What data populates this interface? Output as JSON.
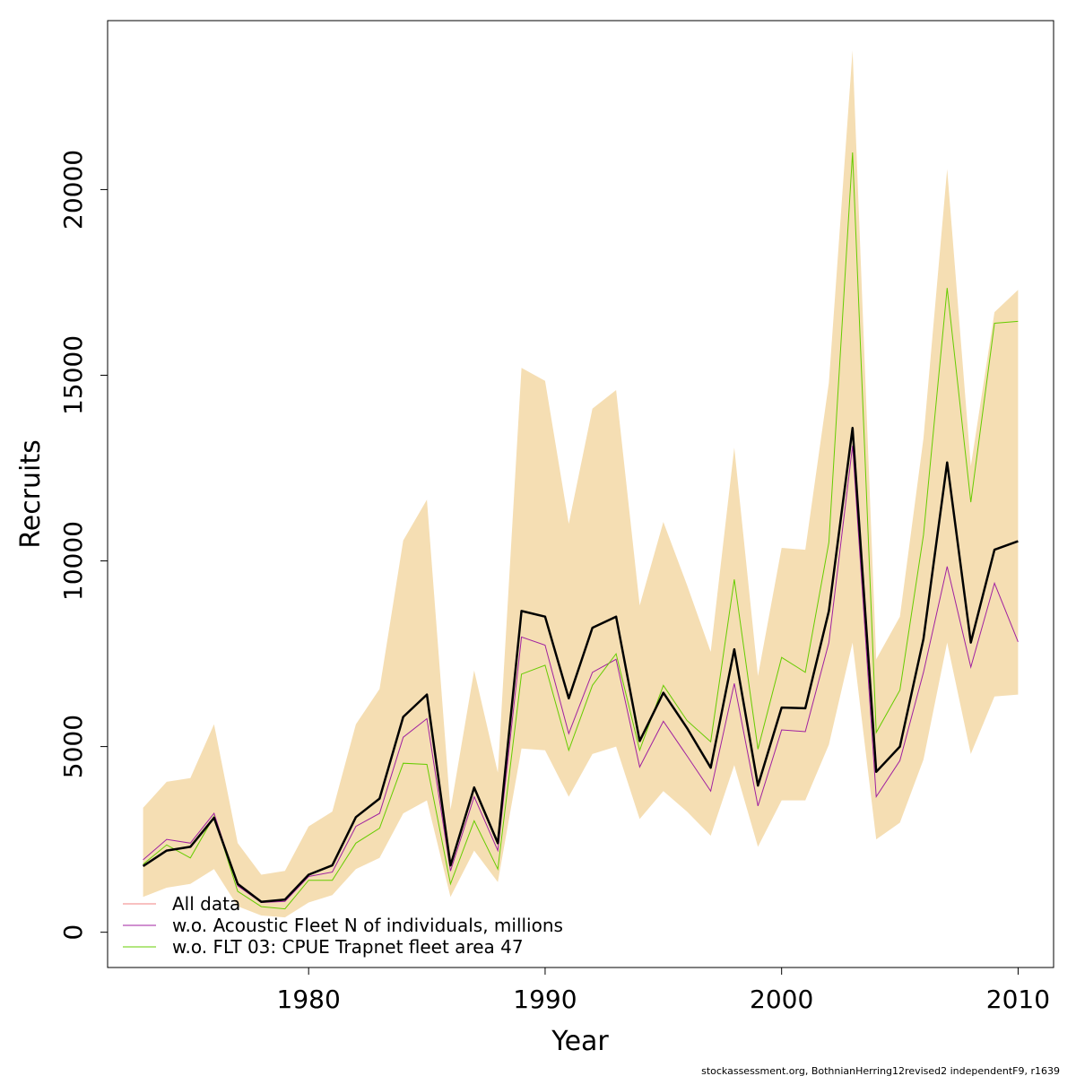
{
  "chart_data": {
    "type": "line",
    "xlabel": "Year",
    "ylabel": "Recruits",
    "xlim": [
      1971.5,
      2011.5
    ],
    "ylim": [
      -950,
      24550
    ],
    "xticks": [
      1980,
      1990,
      2000,
      2010
    ],
    "yticks": [
      0,
      5000,
      10000,
      15000,
      20000
    ],
    "x": [
      1973,
      1974,
      1975,
      1976,
      1977,
      1978,
      1979,
      1980,
      1981,
      1982,
      1983,
      1984,
      1985,
      1986,
      1987,
      1988,
      1989,
      1990,
      1991,
      1992,
      1993,
      1994,
      1995,
      1996,
      1997,
      1998,
      1999,
      2000,
      2001,
      2002,
      2003,
      2004,
      2005,
      2006,
      2007,
      2008,
      2009,
      2010
    ],
    "band": {
      "upper": [
        3350,
        4050,
        4150,
        5600,
        2400,
        1550,
        1650,
        2850,
        3250,
        5600,
        6550,
        10550,
        11650,
        3300,
        7050,
        4300,
        15200,
        14850,
        11000,
        14100,
        14600,
        8800,
        11050,
        9350,
        7550,
        13050,
        6900,
        10350,
        10300,
        14800,
        23750,
        7350,
        8500,
        13300,
        20550,
        12550,
        16700,
        17300
      ],
      "lower": [
        950,
        1200,
        1300,
        1700,
        700,
        450,
        400,
        800,
        1000,
        1700,
        2000,
        3200,
        3550,
        950,
        2200,
        1350,
        4950,
        4900,
        3650,
        4800,
        5000,
        3050,
        3800,
        3250,
        2600,
        4500,
        2300,
        3550,
        3550,
        5050,
        7800,
        2500,
        2950,
        4650,
        7800,
        4800,
        6350,
        6400
      ]
    },
    "series": [
      {
        "name": "All data",
        "color": "#f08080",
        "values": [
          1780,
          2200,
          2300,
          3080,
          1300,
          820,
          880,
          1550,
          1800,
          3100,
          3600,
          5800,
          6400,
          1800,
          3900,
          2400,
          8650,
          8500,
          6300,
          8200,
          8500,
          5150,
          6450,
          5500,
          4430,
          7620,
          3950,
          6050,
          6030,
          8650,
          13580,
          4320,
          5000,
          7900,
          12650,
          7800,
          10300,
          10530
        ]
      },
      {
        "name": "w.o. Acoustic Fleet  N of individuals, millions",
        "color": "#a020a0",
        "values": [
          1950,
          2500,
          2400,
          3200,
          1250,
          800,
          830,
          1500,
          1620,
          2850,
          3200,
          5250,
          5750,
          1650,
          3650,
          2200,
          7950,
          7730,
          5350,
          7000,
          7350,
          4450,
          5680,
          4750,
          3800,
          6700,
          3400,
          5450,
          5400,
          7800,
          13100,
          3650,
          4620,
          7000,
          9850,
          7140,
          9400,
          7820
        ]
      },
      {
        "name": "w.o. FLT 03: CPUE Trapnet fleet area 47",
        "color": "#66cc00",
        "values": [
          1830,
          2350,
          2000,
          3120,
          1100,
          690,
          630,
          1400,
          1400,
          2400,
          2800,
          4550,
          4520,
          1300,
          3000,
          1700,
          6950,
          7190,
          4900,
          6650,
          7500,
          4900,
          6650,
          5700,
          5130,
          9500,
          4930,
          7400,
          7000,
          10500,
          21000,
          5380,
          6520,
          10700,
          17350,
          11580,
          16400,
          16450
        ]
      }
    ],
    "main_line": {
      "color": "#000000",
      "values": [
        1780,
        2200,
        2300,
        3080,
        1300,
        820,
        880,
        1550,
        1800,
        3100,
        3600,
        5800,
        6400,
        1800,
        3900,
        2400,
        8650,
        8500,
        6300,
        8200,
        8500,
        5150,
        6450,
        5500,
        4430,
        7620,
        3950,
        6050,
        6030,
        8650,
        13580,
        4320,
        5000,
        7900,
        12650,
        7800,
        10300,
        10530
      ]
    },
    "colors": {
      "band": "#f5deb3",
      "axis": "#000000"
    },
    "legend": {
      "placement": "bottom-left",
      "box": false
    },
    "grid": false,
    "footer": "stockassessment.org, BothnianHerring12revised2  independentF9, r1639"
  }
}
